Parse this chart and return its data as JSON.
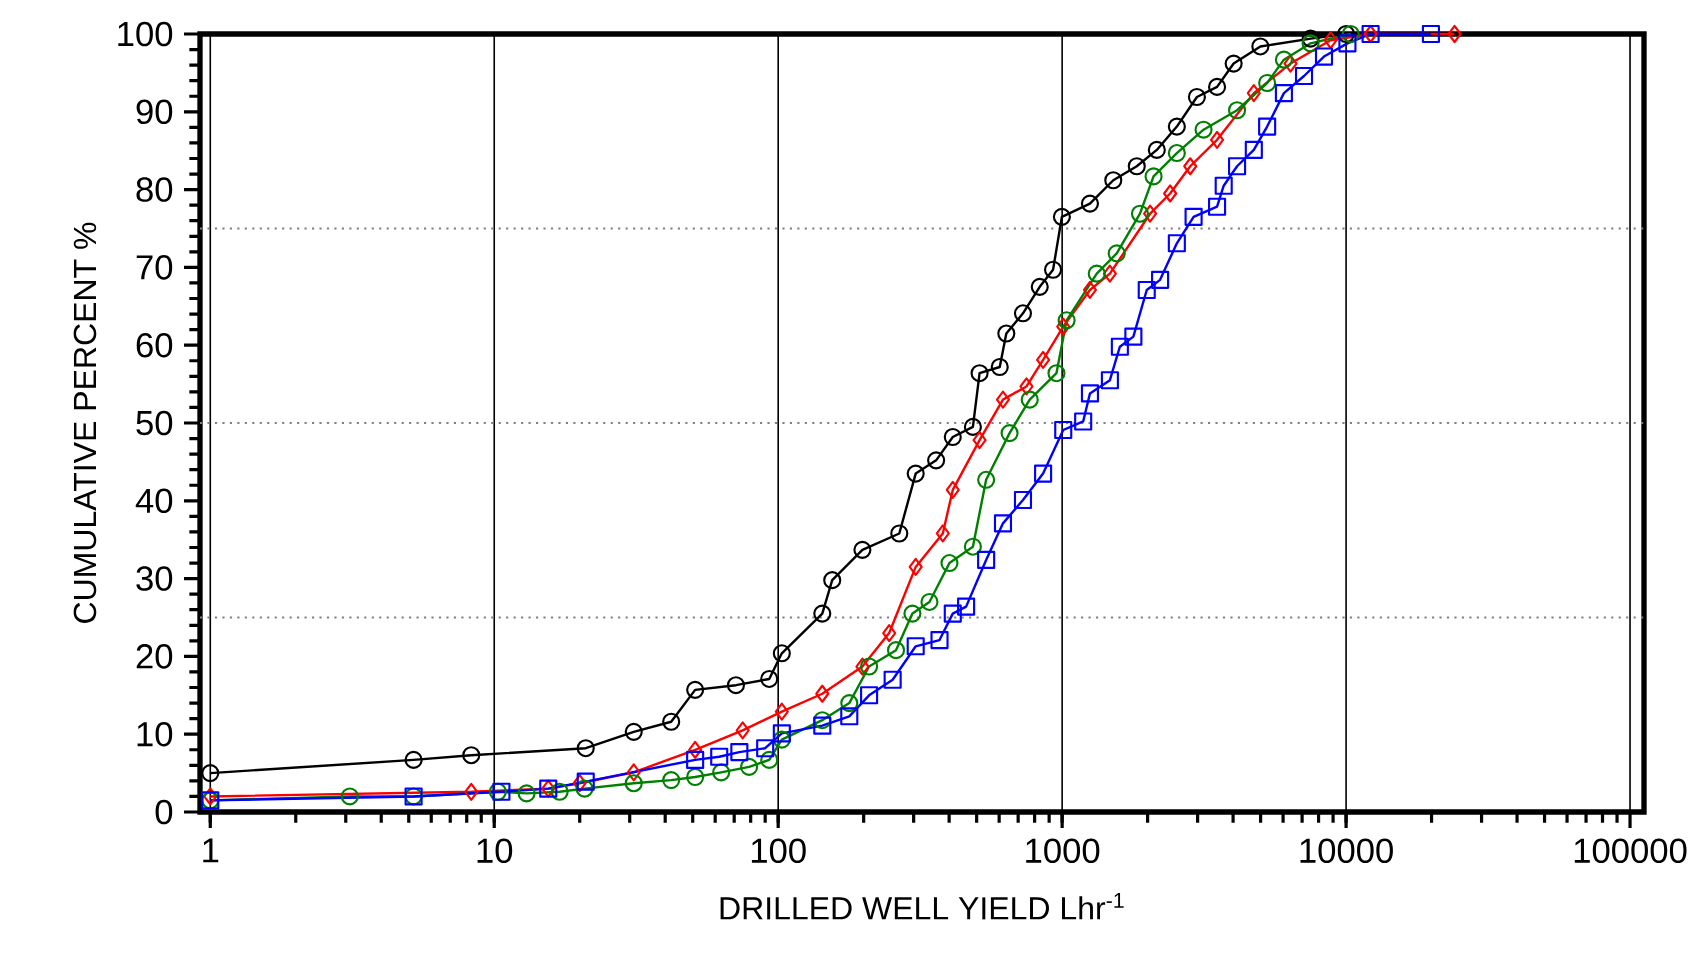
{
  "chart_data": {
    "type": "line",
    "xlabel": "DRILLED WELL YIELD  Lhr$^{-1}$",
    "ylabel": "CUMULATIVE PERCENT  %",
    "log": "x",
    "grid": "x",
    "line_style": "solid",
    "xlim": [
      0.92,
      112000
    ],
    "ylim": [
      0,
      100
    ],
    "xticks": [
      1,
      10,
      100,
      1000,
      10000,
      100000
    ],
    "yticks": [
      0,
      10,
      20,
      30,
      40,
      50,
      60,
      70,
      80,
      90,
      100
    ],
    "ref_lines": [
      {
        "axis": "y",
        "value": 25,
        "line_style": "dotted",
        "color": "#808080"
      },
      {
        "axis": "y",
        "value": 50,
        "line_style": "dotted",
        "color": "#808080"
      },
      {
        "axis": "y",
        "value": 75,
        "line_style": "dotted",
        "color": "#808080"
      }
    ],
    "series": [
      {
        "color": "#000000",
        "marker": "circle",
        "x": [
          1,
          5.2,
          8.3,
          21,
          31,
          42,
          51,
          71,
          93,
          103,
          143,
          155,
          198,
          267,
          305,
          360,
          412,
          485,
          512,
          603,
          636,
          728,
          834,
          929,
          998,
          1253,
          1514,
          1832,
          2155,
          2535,
          2983,
          3513,
          4018,
          4990,
          7500,
          10000
        ],
        "values": [
          5,
          6.7,
          7.3,
          8.2,
          10.3,
          11.6,
          15.7,
          16.3,
          17.1,
          20.4,
          25.5,
          29.8,
          33.7,
          35.8,
          43.5,
          45.2,
          48.2,
          49.5,
          56.4,
          57.2,
          61.5,
          64.1,
          67.5,
          69.7,
          76.5,
          78.2,
          81.2,
          83,
          85.1,
          88.1,
          91.9,
          93.2,
          96.2,
          98.4,
          99.4,
          100
        ]
      },
      {
        "color": "#ff0000",
        "marker": "diamond",
        "x": [
          1,
          8.3,
          15.5,
          20,
          31,
          51,
          75,
          103,
          143,
          198,
          246,
          305,
          380,
          412,
          512,
          619,
          749,
          857,
          1009,
          1253,
          1473,
          2041,
          2401,
          2826,
          3513,
          4732,
          6372,
          8822,
          12200,
          24100
        ],
        "values": [
          2,
          2.6,
          3,
          3.7,
          5.1,
          8,
          10.5,
          12.9,
          15.2,
          18.7,
          23,
          31.5,
          35.8,
          41.4,
          47.8,
          53,
          54.7,
          58.1,
          62.4,
          67.1,
          69.2,
          76.9,
          79.5,
          83,
          86.4,
          92.4,
          96.2,
          99.2,
          100,
          100
        ]
      },
      {
        "color": "#008000",
        "marker": "circle",
        "x": [
          1,
          3.1,
          5.2,
          10.3,
          13,
          17,
          20.8,
          31,
          42,
          51,
          63,
          79,
          93,
          103,
          143,
          178,
          209,
          260,
          297,
          341,
          401,
          485,
          540,
          653,
          769,
          955,
          1037,
          1324,
          1557,
          1880,
          2099,
          2535,
          3148,
          4131,
          5272,
          6040,
          7500,
          10380
        ],
        "values": [
          1.5,
          2,
          2,
          2.6,
          2.4,
          2.6,
          3,
          3.7,
          4.1,
          4.5,
          5.1,
          5.8,
          6.7,
          9.3,
          11.8,
          14,
          18.7,
          20.8,
          25.5,
          27,
          32,
          34.1,
          42.7,
          48.7,
          53,
          56.4,
          63.2,
          69.2,
          71.8,
          76.9,
          81.7,
          84.7,
          87.7,
          90.2,
          93.7,
          96.7,
          98.8,
          100
        ]
      },
      {
        "color": "#0000ff",
        "marker": "square",
        "x": [
          1,
          5.2,
          10.6,
          15.5,
          21,
          51,
          62,
          73,
          90,
          103,
          143,
          178,
          209,
          253,
          305,
          370,
          412,
          459,
          540,
          619,
          728,
          857,
          1009,
          1186,
          1253,
          1473,
          1597,
          1782,
          1986,
          2213,
          2535,
          2904,
          3513,
          3707,
          4131,
          4732,
          5272,
          6040,
          7110,
          8360,
          10110,
          12200,
          19900
        ],
        "values": [
          1.5,
          2,
          2.6,
          3,
          3.9,
          6.7,
          7.1,
          7.7,
          8.2,
          10.1,
          11.1,
          12.3,
          15,
          17,
          21.3,
          22.1,
          25.5,
          26.4,
          32.4,
          37.1,
          40.1,
          43.5,
          49.1,
          50.2,
          53.8,
          55.5,
          59.8,
          61.1,
          67.1,
          68.4,
          73.1,
          76.5,
          77.8,
          80.5,
          83,
          85.1,
          88.1,
          92.4,
          94.6,
          97.1,
          98.8,
          100,
          100
        ]
      }
    ]
  }
}
